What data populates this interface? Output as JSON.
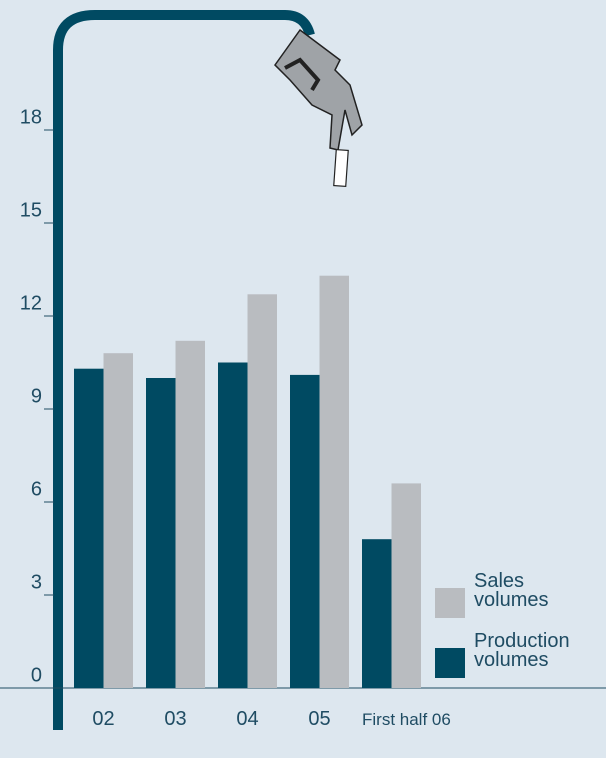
{
  "chart_data": {
    "type": "bar",
    "categories": [
      "02",
      "03",
      "04",
      "05",
      "First half 06"
    ],
    "series": [
      {
        "name": "Production volumes",
        "color": "#004a62",
        "values": [
          10.3,
          10.0,
          10.5,
          10.1,
          4.8
        ]
      },
      {
        "name": "Sales volumes",
        "color": "#b9bcc0",
        "values": [
          10.8,
          11.2,
          12.7,
          13.3,
          6.6
        ]
      }
    ],
    "ylim": [
      0,
      21
    ],
    "yticks": [
      0,
      3,
      6,
      9,
      12,
      15,
      18
    ],
    "grid": false
  }
}
